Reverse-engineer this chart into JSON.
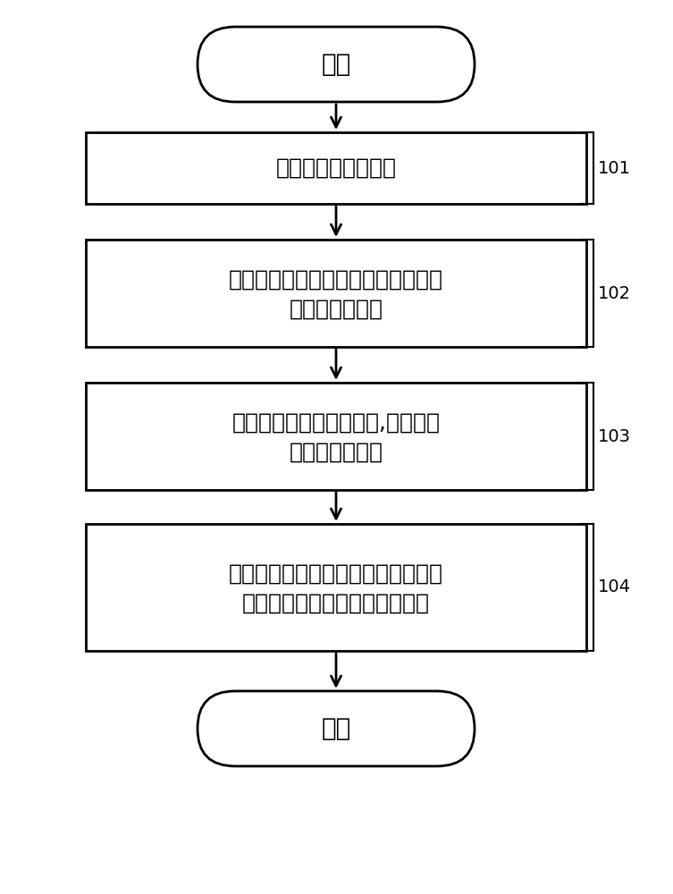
{
  "bg_color": "#ffffff",
  "border_color": "#000000",
  "text_color": "#000000",
  "start_end": {
    "start_text": "开始",
    "end_text": "结束"
  },
  "boxes": [
    {
      "id": "101",
      "label": "101",
      "text": "建立一维电池热模型",
      "lines": [
        "建立一维电池热模型"
      ]
    },
    {
      "id": "102",
      "label": "102",
      "text": "将电池运行产生的热能与电池等效电\n路模型耦合运行",
      "lines": [
        "将电池运行产生的热能与电池等效电",
        "路模型耦合运行"
      ]
    },
    {
      "id": "103",
      "label": "103",
      "text": "计算电池运行产生的热能,采集大气\n温度与空气流量",
      "lines": [
        "计算电池运行产生的热能,采集大气",
        "温度与空气流量"
      ]
    },
    {
      "id": "104",
      "label": "104",
      "text": "根据电池运行产生的热能、大气温度\n与空气流量，计算得出电池温度",
      "lines": [
        "根据电池运行产生的热能、大气温度",
        "与空气流量，计算得出电池温度"
      ]
    }
  ],
  "font_size_main": 18,
  "font_size_label": 14,
  "font_family": "SimSun",
  "arrow_color": "#000000",
  "line_width": 2.0
}
